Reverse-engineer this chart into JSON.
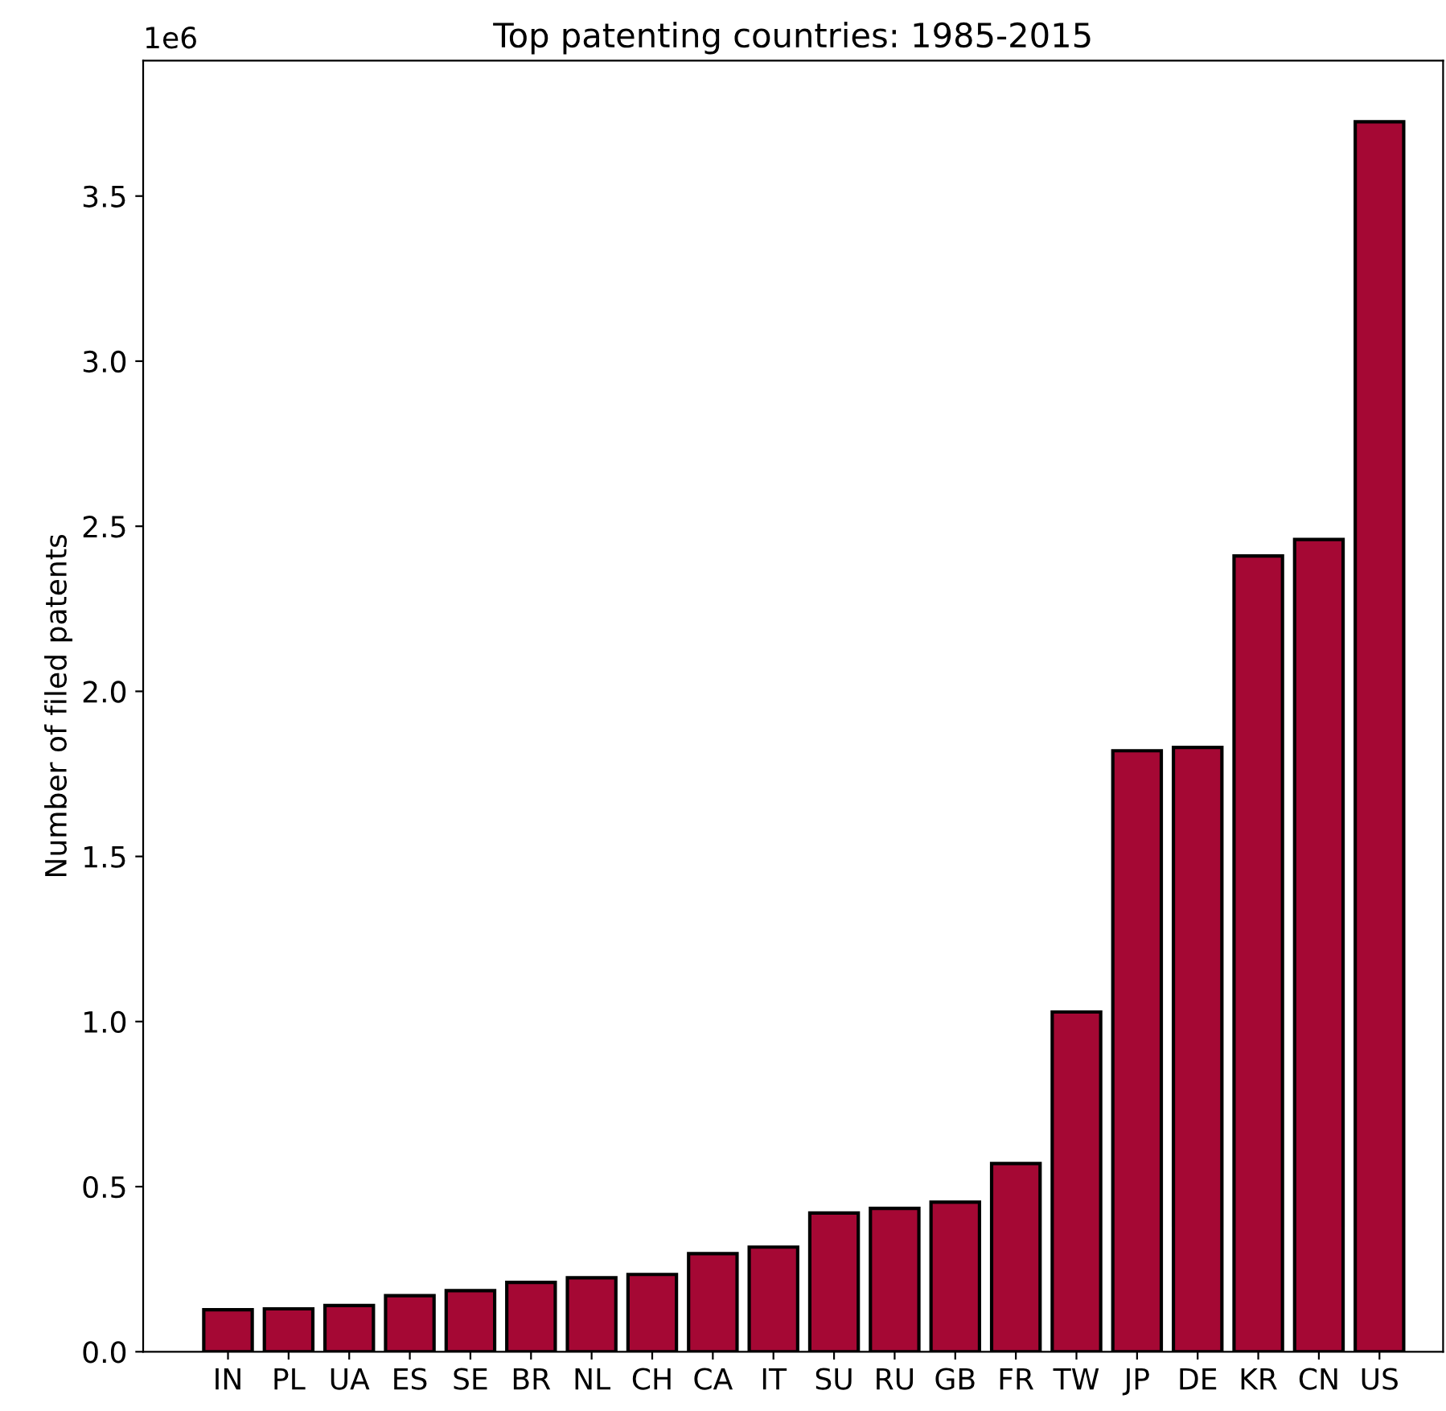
{
  "chart_data": {
    "type": "bar",
    "title": "Top patenting countries: 1985-2015",
    "ylabel": "Number of filed patents",
    "categories": [
      "IN",
      "PL",
      "UA",
      "ES",
      "SE",
      "BR",
      "NL",
      "CH",
      "CA",
      "IT",
      "SU",
      "RU",
      "GB",
      "FR",
      "TW",
      "JP",
      "DE",
      "KR",
      "CN",
      "US"
    ],
    "values": [
      0.127,
      0.13,
      0.14,
      0.17,
      0.185,
      0.21,
      0.224,
      0.234,
      0.297,
      0.317,
      0.42,
      0.434,
      0.453,
      0.57,
      1.029,
      1.82,
      1.83,
      2.41,
      2.46,
      3.725
    ],
    "color": "#a50834",
    "ylim": [
      0,
      3.91
    ],
    "yticks": [
      {
        "value": 0,
        "label": "0.0"
      },
      0.5,
      {
        "value": 1,
        "label": "1.0"
      },
      1.5,
      {
        "value": 2,
        "label": "2.0"
      },
      2.5,
      {
        "value": 3,
        "label": "3.0"
      },
      3.5
    ],
    "annotations": [
      "1e6"
    ],
    "grid": false
  }
}
